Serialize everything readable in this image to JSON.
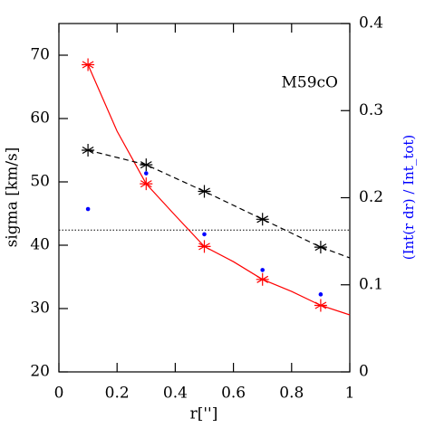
{
  "chart_data": {
    "type": "line",
    "xlabel": "r['']",
    "ylabel": "sigma [km/s]",
    "y2label": "(Int(r dr) / Int_tot)",
    "y2label_color": "#0000ff",
    "annotation": "M59cO",
    "xlim": [
      0,
      1
    ],
    "ylim": [
      20,
      75
    ],
    "y2lim": [
      0,
      0.4
    ],
    "xticks": [
      0,
      0.2,
      0.4,
      0.6,
      0.8,
      1
    ],
    "yticks": [
      20,
      30,
      40,
      50,
      60,
      70
    ],
    "y2ticks": [
      0,
      0.1,
      0.2,
      0.3,
      0.4
    ],
    "hline": 42.4,
    "series": [
      {
        "color": "#ff0000",
        "marker": "star",
        "line": "none",
        "x": [
          0.1,
          0.3,
          0.5,
          0.7,
          0.9
        ],
        "values": [
          68.5,
          49.7,
          39.8,
          34.6,
          30.5
        ]
      },
      {
        "color": "#ff0000",
        "marker": "none",
        "line": "solid",
        "x": [
          0.1,
          0.2,
          0.3,
          0.4,
          0.5,
          0.6,
          0.7,
          0.8,
          0.9,
          1
        ],
        "values": [
          68.5,
          58,
          49.7,
          44.7,
          39.8,
          37.4,
          34.6,
          32.7,
          30.5,
          29
        ]
      },
      {
        "color": "#000000",
        "marker": "star",
        "line": "none",
        "x": [
          0.1,
          0.3,
          0.5,
          0.7,
          0.9
        ],
        "values": [
          55,
          52.7,
          48.5,
          44.1,
          39.7
        ]
      },
      {
        "color": "#000000",
        "marker": "none",
        "line": "dashed",
        "x": [
          0.1,
          0.3,
          0.5,
          0.7,
          0.9,
          1
        ],
        "values": [
          55,
          52.7,
          48.5,
          44.1,
          39.7,
          38
        ]
      },
      {
        "color": "#0000ff",
        "marker": "dot",
        "line": "none",
        "axis": "y2",
        "x": [
          0.1,
          0.3,
          0.5,
          0.7,
          0.9
        ],
        "values": [
          0.187,
          0.228,
          0.158,
          0.117,
          0.089
        ]
      }
    ]
  }
}
